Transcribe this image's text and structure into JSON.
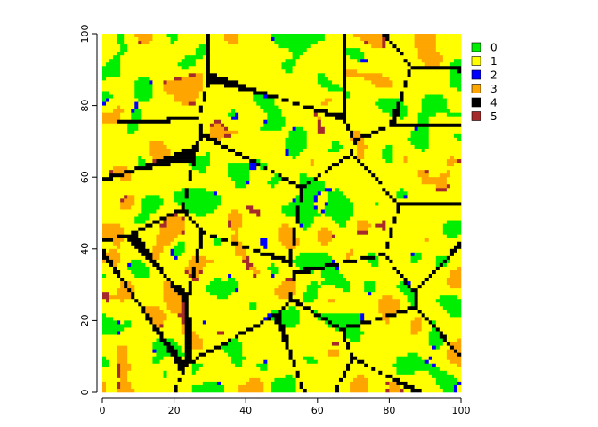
{
  "chart_data": {
    "type": "heatmap",
    "title": "",
    "xlabel": "",
    "ylabel": "",
    "xlim": [
      0,
      100
    ],
    "ylim": [
      0,
      100
    ],
    "grid_size": [
      100,
      100
    ],
    "x_ticks": [
      "0",
      "20",
      "40",
      "60",
      "80",
      "100"
    ],
    "y_ticks": [
      "0",
      "20",
      "40",
      "60",
      "80",
      "100"
    ],
    "legend_position": "right",
    "classes": [
      {
        "value": "0",
        "color": "#00ee00"
      },
      {
        "value": "1",
        "color": "#ffff00"
      },
      {
        "value": "2",
        "color": "#0000ff"
      },
      {
        "value": "3",
        "color": "#ffa500"
      },
      {
        "value": "4",
        "color": "#000000"
      },
      {
        "value": "5",
        "color": "#a52a2a"
      }
    ],
    "approx_class_share": {
      "0": 0.34,
      "1": 0.43,
      "2": 0.05,
      "3": 0.13,
      "4": 0.04,
      "5": 0.01
    },
    "seed": 17
  }
}
